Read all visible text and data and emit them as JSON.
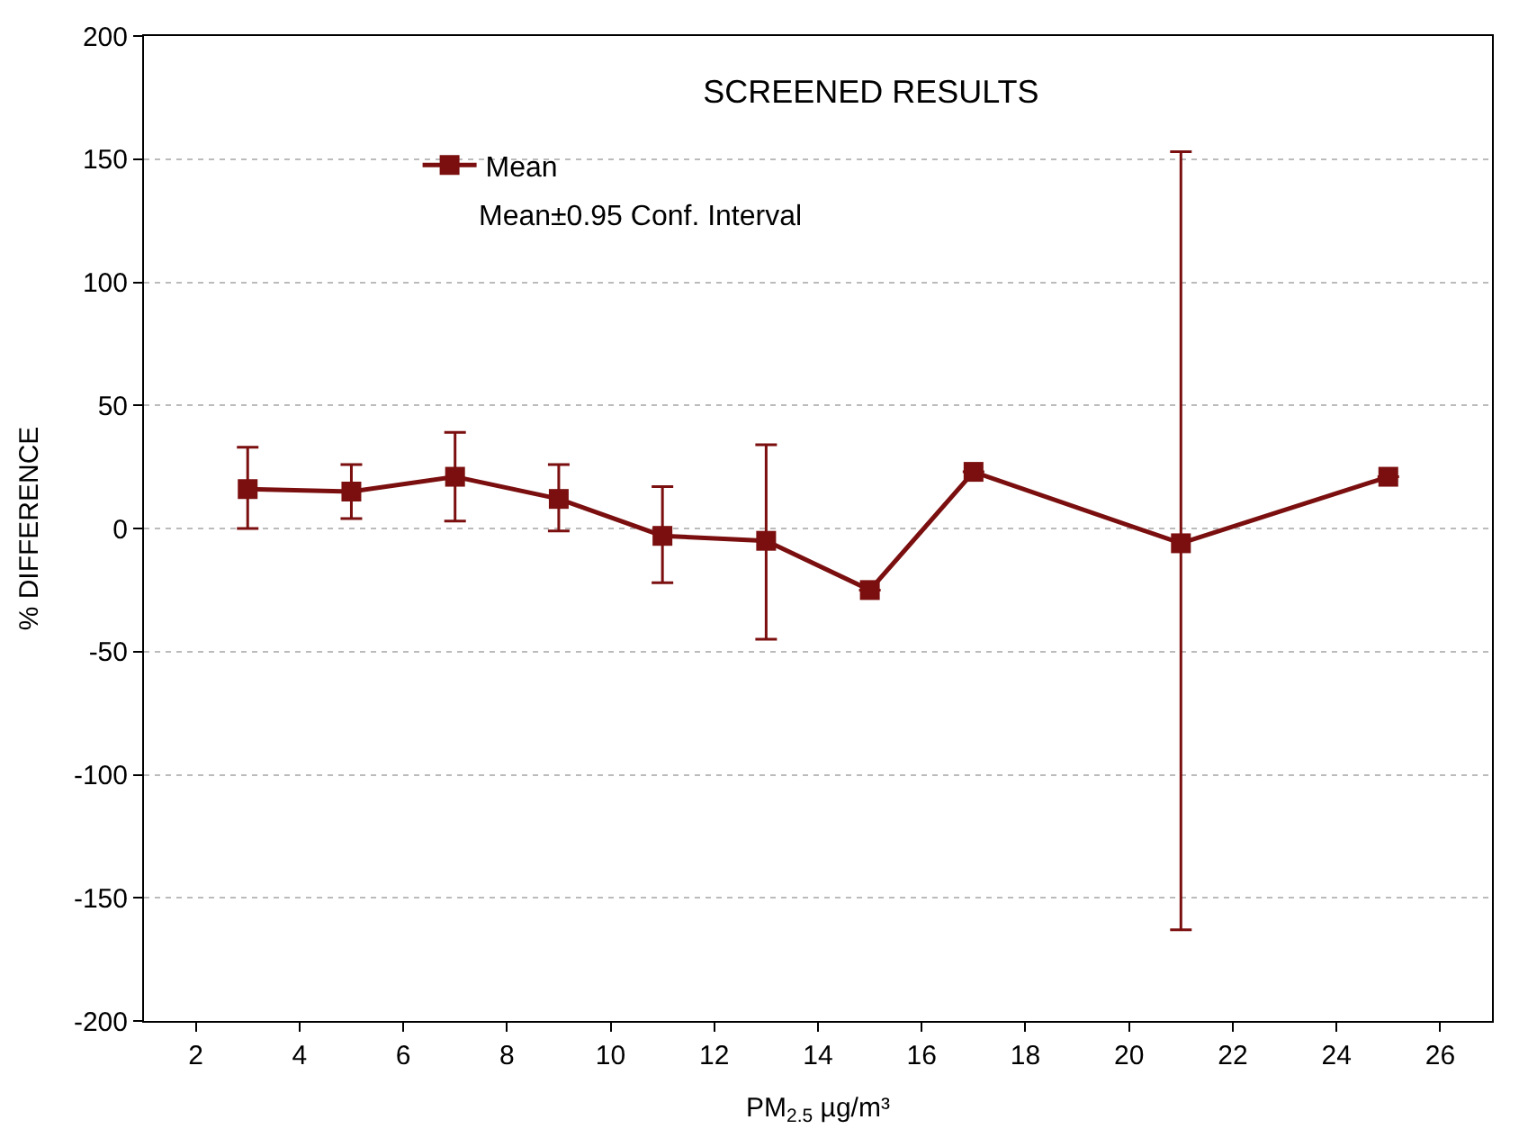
{
  "chart_data": {
    "type": "line",
    "title": "SCREENED RESULTS",
    "xlabel": "PM$_{2.5}$ µg/m³",
    "ylabel": "% DIFFERENCE",
    "x": [
      3,
      5,
      7,
      9,
      11,
      13,
      15,
      17,
      21,
      25
    ],
    "series": [
      {
        "name": "Mean",
        "color": "#7b0f0f",
        "values": [
          16,
          15,
          21,
          12,
          -3,
          -5,
          -25,
          23,
          -6,
          21
        ],
        "errors": [
          [
            0,
            33
          ],
          [
            4,
            26
          ],
          [
            3,
            39
          ],
          [
            -1,
            26
          ],
          [
            -22,
            17
          ],
          [
            -45,
            34
          ],
          null,
          null,
          [
            -163,
            153
          ],
          null
        ]
      }
    ],
    "annotations": [
      "Mean±0.95 Conf. Interval"
    ],
    "xlim": [
      1,
      27
    ],
    "xticks": [
      2,
      4,
      6,
      8,
      10,
      12,
      14,
      16,
      18,
      20,
      22,
      24,
      26
    ],
    "ylim": [
      -200,
      200
    ],
    "yticks": [
      -200,
      -150,
      -100,
      -50,
      0,
      50,
      100,
      150,
      200
    ],
    "grid": "y",
    "legend": "top left",
    "marker": "square",
    "line_style": "solid"
  }
}
